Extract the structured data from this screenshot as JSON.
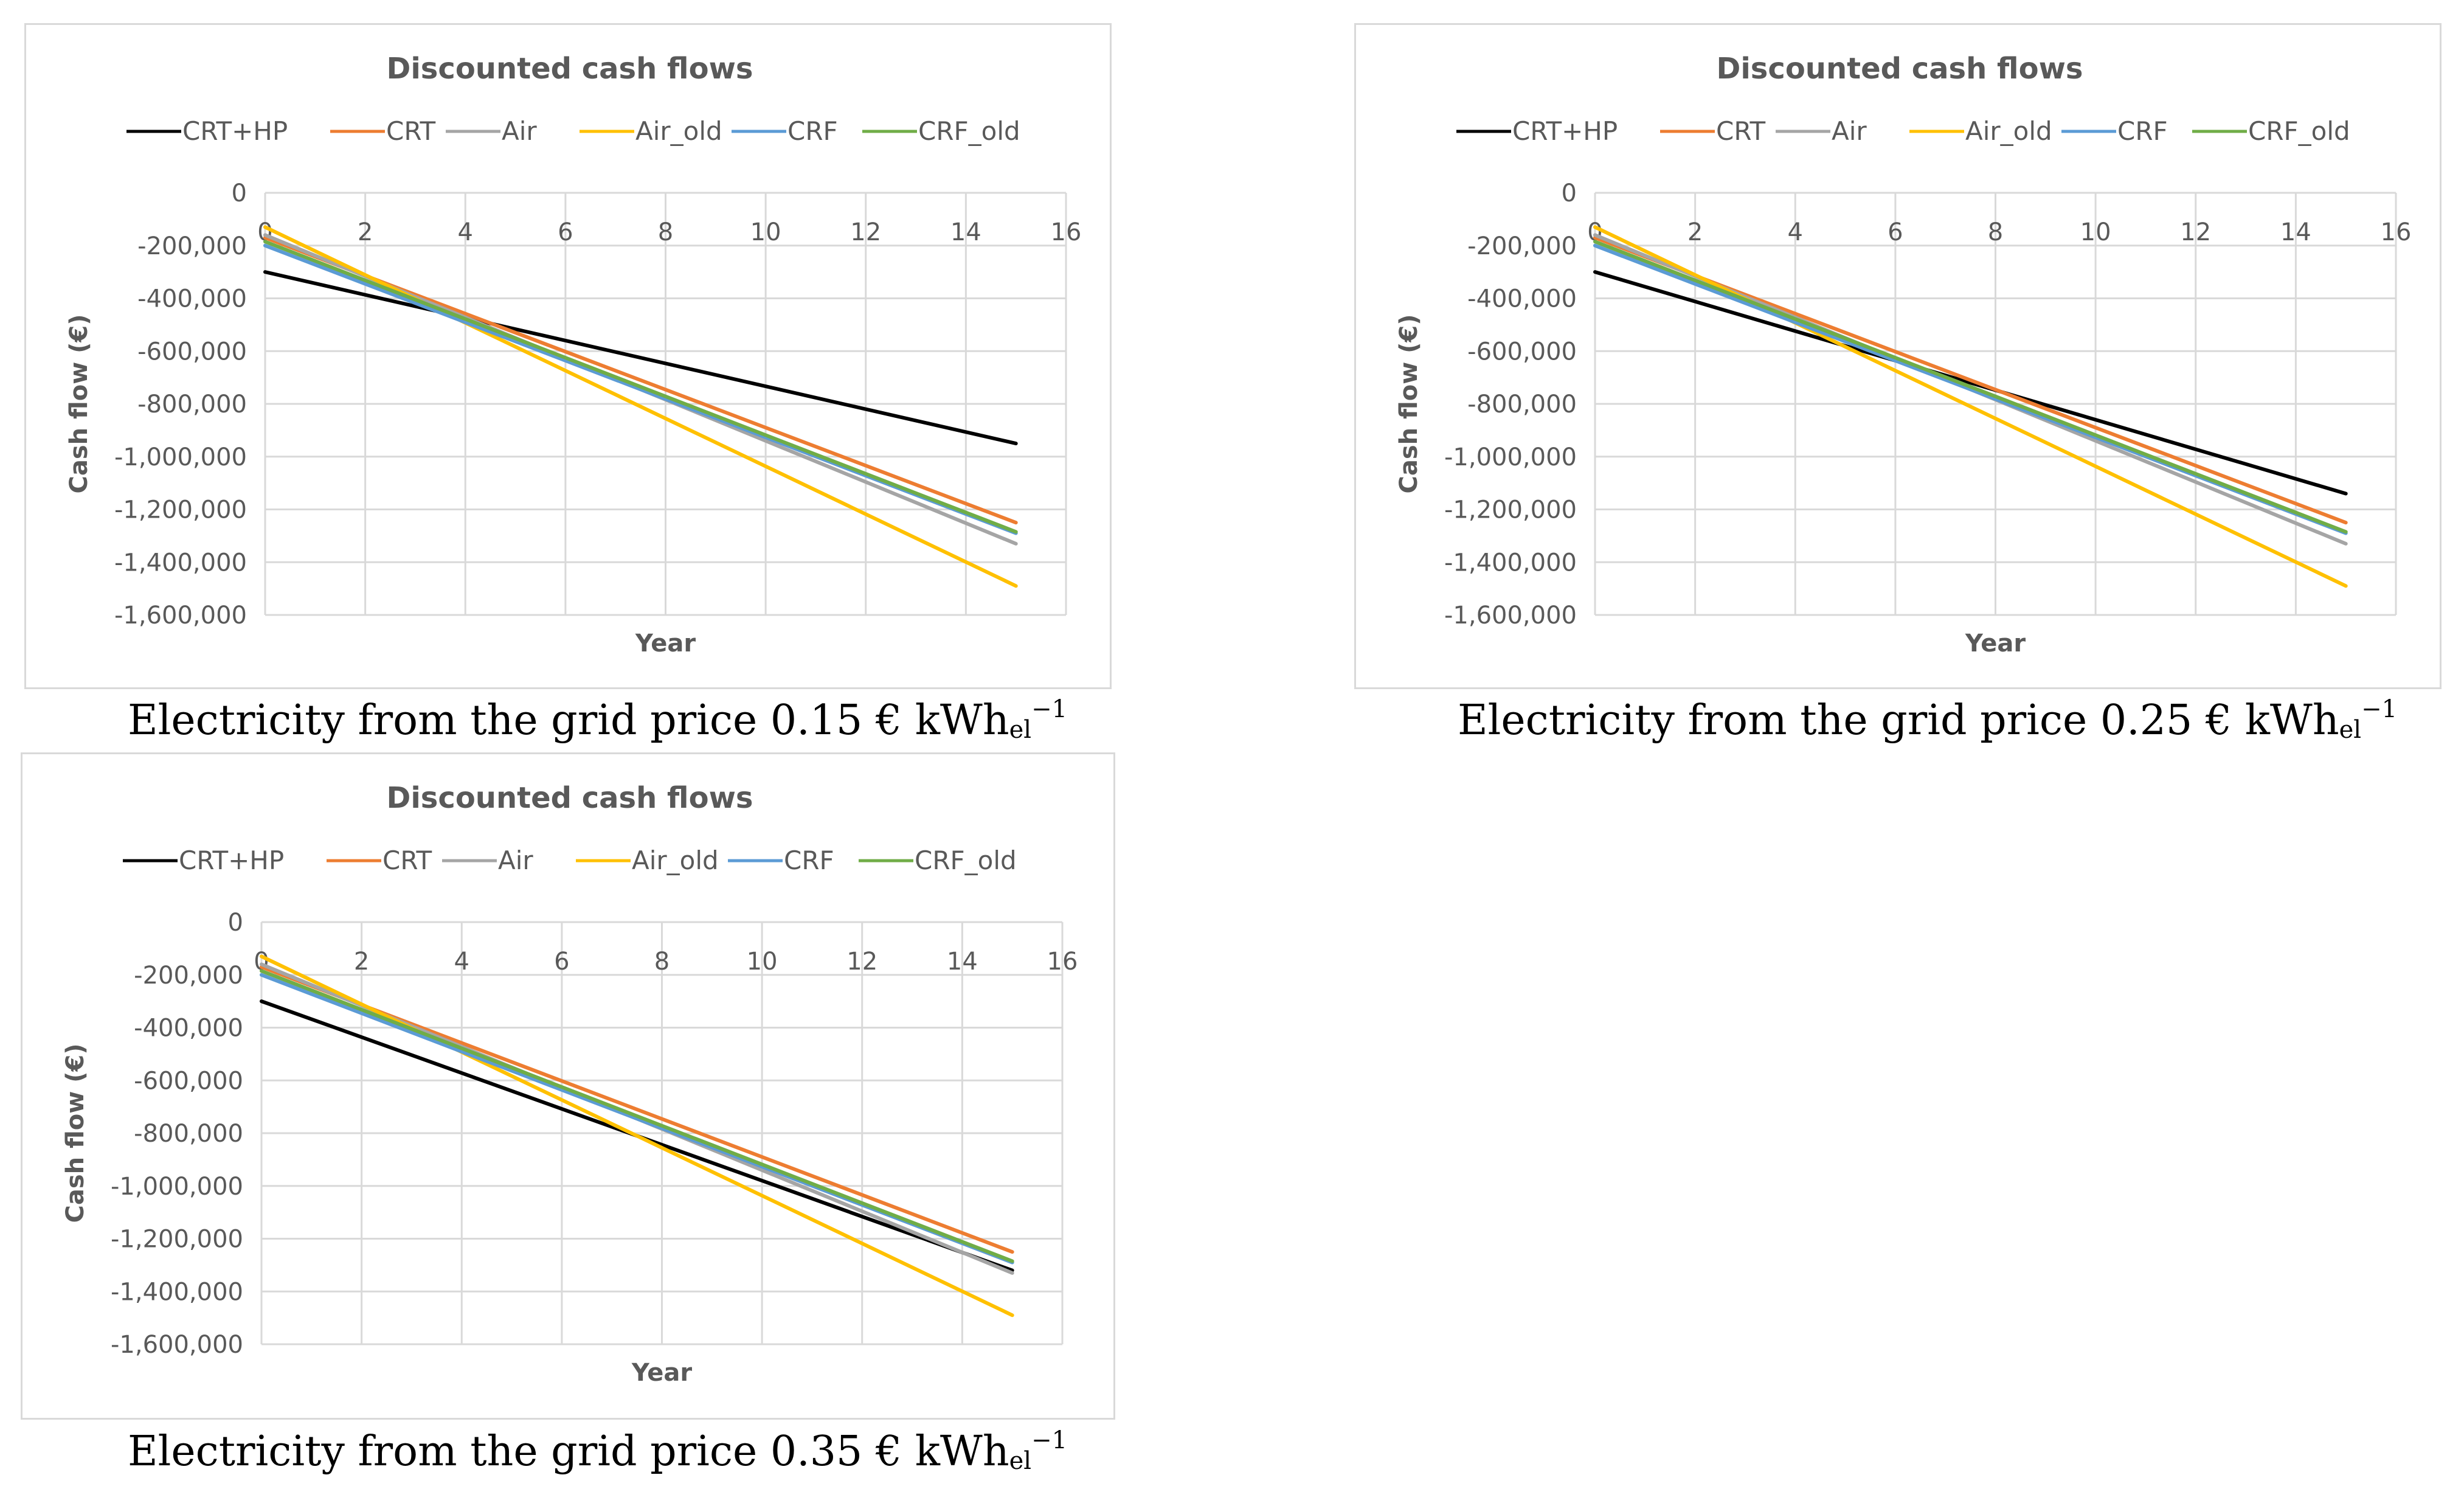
{
  "chart_data": [
    {
      "type": "line",
      "title": "Discounted cash flows",
      "xlabel": "Year",
      "ylabel": "Cash flow  (€)",
      "xlim": [
        0,
        16
      ],
      "ylim": [
        -1600000,
        0
      ],
      "xticks": [
        "0",
        "2",
        "4",
        "6",
        "8",
        "10",
        "12",
        "14",
        "16"
      ],
      "yticks": [
        "0",
        "-200,000",
        "-400,000",
        "-600,000",
        "-800,000",
        "-1,000,000",
        "-1,200,000",
        "-1,400,000",
        "-1,600,000"
      ],
      "x": [
        0,
        15
      ],
      "grid": true,
      "legend": "top",
      "series": [
        {
          "name": "CRT+HP",
          "color": "#000000",
          "values": [
            -300000,
            -950000
          ]
        },
        {
          "name": "CRT",
          "color": "#ed7d31",
          "values": [
            -170000,
            -1250000
          ]
        },
        {
          "name": "Air",
          "color": "#a5a5a5",
          "values": [
            -160000,
            -1330000
          ]
        },
        {
          "name": "Air_old",
          "color": "#ffc000",
          "values": [
            -130000,
            -1490000
          ]
        },
        {
          "name": "CRF",
          "color": "#5b9bd5",
          "values": [
            -200000,
            -1290000
          ]
        },
        {
          "name": "CRF_old",
          "color": "#70ad47",
          "values": [
            -185000,
            -1285000
          ]
        }
      ]
    },
    {
      "type": "line",
      "title": "Discounted cash flows",
      "xlabel": "Year",
      "ylabel": "Cash flow  (€)",
      "xlim": [
        0,
        16
      ],
      "ylim": [
        -1600000,
        0
      ],
      "xticks": [
        "0",
        "2",
        "4",
        "6",
        "8",
        "10",
        "12",
        "14",
        "16"
      ],
      "yticks": [
        "0",
        "-200,000",
        "-400,000",
        "-600,000",
        "-800,000",
        "-1,000,000",
        "-1,200,000",
        "-1,400,000",
        "-1,600,000"
      ],
      "x": [
        0,
        15
      ],
      "grid": true,
      "legend": "top",
      "series": [
        {
          "name": "CRT+HP",
          "color": "#000000",
          "values": [
            -300000,
            -1140000
          ]
        },
        {
          "name": "CRT",
          "color": "#ed7d31",
          "values": [
            -170000,
            -1250000
          ]
        },
        {
          "name": "Air",
          "color": "#a5a5a5",
          "values": [
            -160000,
            -1330000
          ]
        },
        {
          "name": "Air_old",
          "color": "#ffc000",
          "values": [
            -130000,
            -1490000
          ]
        },
        {
          "name": "CRF",
          "color": "#5b9bd5",
          "values": [
            -200000,
            -1290000
          ]
        },
        {
          "name": "CRF_old",
          "color": "#70ad47",
          "values": [
            -185000,
            -1285000
          ]
        }
      ]
    },
    {
      "type": "line",
      "title": "Discounted cash flows",
      "xlabel": "Year",
      "ylabel": "Cash flow  (€)",
      "xlim": [
        0,
        16
      ],
      "ylim": [
        -1600000,
        0
      ],
      "xticks": [
        "0",
        "2",
        "4",
        "6",
        "8",
        "10",
        "12",
        "14",
        "16"
      ],
      "yticks": [
        "0",
        "-200,000",
        "-400,000",
        "-600,000",
        "-800,000",
        "-1,000,000",
        "-1,200,000",
        "-1,400,000",
        "-1,600,000"
      ],
      "x": [
        0,
        15
      ],
      "grid": true,
      "legend": "top",
      "series": [
        {
          "name": "CRT+HP",
          "color": "#000000",
          "values": [
            -300000,
            -1320000
          ]
        },
        {
          "name": "CRT",
          "color": "#ed7d31",
          "values": [
            -170000,
            -1250000
          ]
        },
        {
          "name": "Air",
          "color": "#a5a5a5",
          "values": [
            -160000,
            -1330000
          ]
        },
        {
          "name": "Air_old",
          "color": "#ffc000",
          "values": [
            -130000,
            -1490000
          ]
        },
        {
          "name": "CRF",
          "color": "#5b9bd5",
          "values": [
            -200000,
            -1290000
          ]
        },
        {
          "name": "CRF_old",
          "color": "#70ad47",
          "values": [
            -185000,
            -1285000
          ]
        }
      ]
    }
  ],
  "captions": [
    {
      "text": "Electricity from the grid price 0.15 € kWh",
      "sub": "el",
      "sup": "−1"
    },
    {
      "text": "Electricity from the grid price 0.25 € kWh",
      "sub": "el",
      "sup": "−1"
    },
    {
      "text": "Electricity from the grid price 0.35 € kWh",
      "sub": "el",
      "sup": "−1"
    }
  ]
}
